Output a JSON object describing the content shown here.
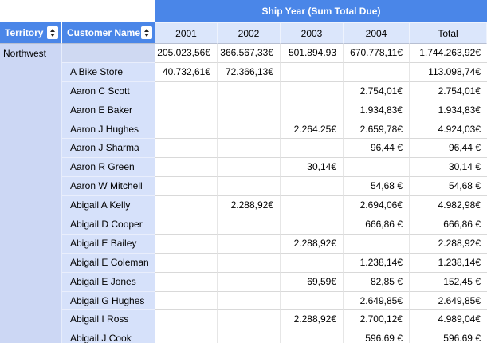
{
  "table": {
    "group_header": "Ship Year (Sum Total Due)",
    "columns": {
      "territory": "Territory",
      "customer": "Customer Name",
      "years": [
        "2001",
        "2002",
        "2003",
        "2004",
        "Total"
      ]
    },
    "territory_group": "Northwest",
    "rows": [
      {
        "customer": "",
        "values": [
          "205.023,56€",
          "366.567,33€",
          "501.894.93",
          "670.778,11€",
          "1.744.263,92€"
        ]
      },
      {
        "customer": "A Bike Store",
        "values": [
          "40.732,61€",
          "72.366,13€",
          "",
          "",
          "113.098,74€"
        ]
      },
      {
        "customer": "Aaron C Scott",
        "values": [
          "",
          "",
          "",
          "2.754,01€",
          "2.754,01€"
        ]
      },
      {
        "customer": "Aaron E Baker",
        "values": [
          "",
          "",
          "",
          "1.934,83€",
          "1.934,83€"
        ]
      },
      {
        "customer": "Aaron J Hughes",
        "values": [
          "",
          "",
          "2.264.25€",
          "2.659,78€",
          "4.924,03€"
        ]
      },
      {
        "customer": "Aaron J Sharma",
        "values": [
          "",
          "",
          "",
          "96,44 €",
          "96,44 €"
        ]
      },
      {
        "customer": "Aaron R Green",
        "values": [
          "",
          "",
          "30,14€",
          "",
          "30,14 €"
        ]
      },
      {
        "customer": "Aaron W Mitchell",
        "values": [
          "",
          "",
          "",
          "54,68 €",
          "54,68 €"
        ]
      },
      {
        "customer": "Abigail A Kelly",
        "values": [
          "",
          "2.288,92€",
          "",
          "2.694,06€",
          "4.982,98€"
        ]
      },
      {
        "customer": "Abigail D Cooper",
        "values": [
          "",
          "",
          "",
          "666,86 €",
          "666,86 €"
        ]
      },
      {
        "customer": "Abigail E Bailey",
        "values": [
          "",
          "",
          "2.288,92€",
          "",
          "2.288,92€"
        ]
      },
      {
        "customer": "Abigail E Coleman",
        "values": [
          "",
          "",
          "",
          "1.238,14€",
          "1.238,14€"
        ]
      },
      {
        "customer": "Abigail E Jones",
        "values": [
          "",
          "",
          "69,59€",
          "82,85 €",
          "152,45 €"
        ]
      },
      {
        "customer": "Abigail G Hughes",
        "values": [
          "",
          "",
          "",
          "2.649,85€",
          "2.649,85€"
        ]
      },
      {
        "customer": "Abigail I Ross",
        "values": [
          "",
          "",
          "2.288,92€",
          "2.700,12€",
          "4.989,04€"
        ]
      },
      {
        "customer": "Abigail J Cook",
        "values": [
          "",
          "",
          "",
          "596.69 €",
          "596.69 €"
        ]
      }
    ],
    "colors": {
      "header_blue": "#4a86e8",
      "year_row_bg": "#dbe6fb",
      "territory_col_bg": "#ccd7f4",
      "customer_col_bg": "#d6e1fa",
      "grid_line": "#d9d9d9"
    }
  }
}
